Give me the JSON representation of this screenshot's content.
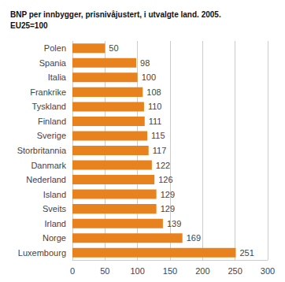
{
  "chart_data": {
    "type": "bar",
    "orientation": "horizontal",
    "title": "BNP per innbygger, prisnivåjustert, i utvalgte land. 2005.\nEU25=100",
    "categories": [
      "Polen",
      "Spania",
      "Italia",
      "Frankrike",
      "Tyskland",
      "Finland",
      "Sverige",
      "Storbritannia",
      "Danmark",
      "Nederland",
      "Island",
      "Sveits",
      "Irland",
      "Norge",
      "Luxembourg"
    ],
    "values": [
      50,
      98,
      100,
      108,
      110,
      111,
      115,
      117,
      122,
      126,
      129,
      129,
      139,
      169,
      251
    ],
    "color": "#E8821E",
    "xlim": [
      0,
      300
    ],
    "xticks": [
      0,
      50,
      100,
      150,
      200,
      250,
      300
    ],
    "grid": true,
    "data_labels": true
  }
}
